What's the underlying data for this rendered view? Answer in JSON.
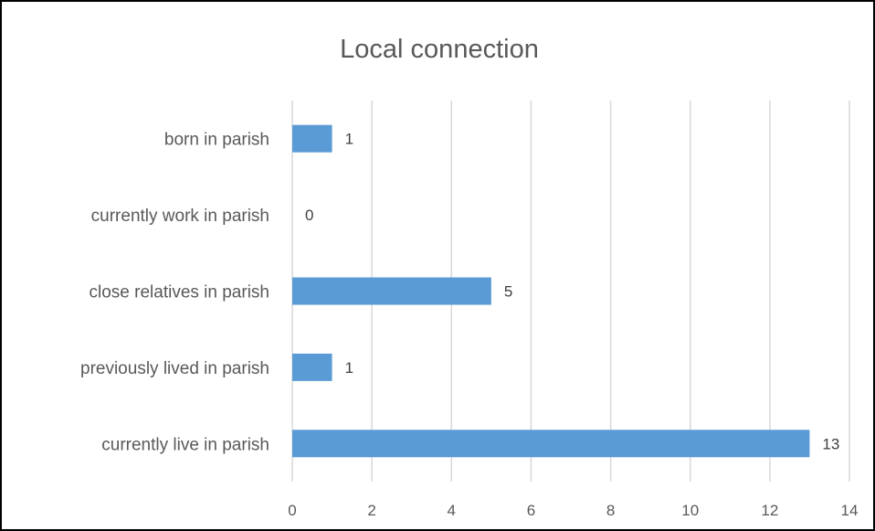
{
  "chart_data": {
    "type": "bar",
    "orientation": "horizontal",
    "title": "Local connection",
    "categories": [
      "born in parish",
      "currently work in parish",
      "close relatives in parish",
      "previously lived in parish",
      "currently live in parish"
    ],
    "values": [
      1,
      0,
      5,
      1,
      13
    ],
    "xlim": [
      0,
      14
    ],
    "x_ticks": [
      0,
      2,
      4,
      6,
      8,
      10,
      12,
      14
    ],
    "xlabel": "",
    "ylabel": "",
    "grid": "vertical",
    "legend": "none",
    "bar_color": "#5b9bd5",
    "data_labels": true
  }
}
